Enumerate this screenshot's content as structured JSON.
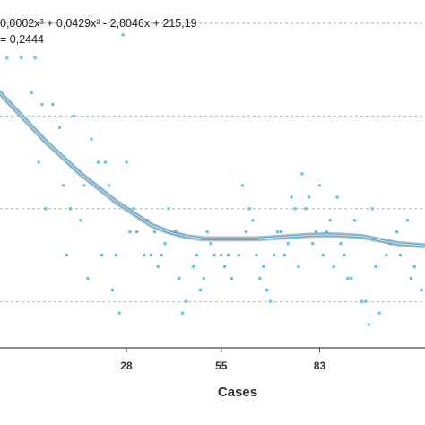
{
  "chart_data": {
    "type": "scatter",
    "title": "",
    "xlabel": "Cases",
    "ylabel": "",
    "xlim": [
      -8,
      113
    ],
    "ylim": [
      60,
      210
    ],
    "x_ticks": [
      28,
      55,
      83
    ],
    "y_gridlines": [
      200,
      160,
      120,
      80
    ],
    "grid": "horizontal dashed",
    "legend": "none",
    "annotations": {
      "equation": "0,0002x³ + 0,0429x² - 2,8046x + 215,19",
      "r_squared": "= 0,2444"
    },
    "trendline": {
      "type": "polynomial (order 3)",
      "x": [
        -8,
        -5,
        0,
        5,
        10,
        15,
        20,
        25,
        30,
        35,
        40,
        45,
        50,
        55,
        60,
        65,
        70,
        75,
        80,
        85,
        90,
        95,
        100,
        105,
        113
      ],
      "y": [
        170,
        165,
        157,
        149,
        142,
        135,
        129,
        123,
        118,
        113,
        110,
        108,
        107,
        107,
        107,
        107,
        107.5,
        108,
        108.5,
        108.8,
        108.5,
        108,
        106.5,
        105,
        104
      ]
    },
    "series": [
      {
        "x": [
          -6,
          -2,
          2,
          4,
          7,
          9,
          10,
          11,
          13,
          16,
          18,
          20,
          22,
          23,
          25,
          27,
          29,
          30,
          31,
          33,
          35,
          36,
          37,
          38,
          40,
          42,
          43,
          45,
          47,
          48,
          50,
          51,
          52,
          53,
          55,
          56,
          58,
          60,
          62,
          63,
          65,
          67,
          68,
          70,
          72,
          74,
          75,
          76,
          78,
          80,
          81,
          83,
          85,
          86,
          88,
          90,
          92,
          95,
          97,
          99,
          102,
          105,
          108,
          110,
          112,
          1,
          3,
          5,
          12,
          15,
          17,
          21,
          24,
          26,
          28,
          34,
          39,
          44,
          49,
          57,
          61,
          64,
          66,
          69,
          71,
          73,
          77,
          79,
          82,
          84,
          87,
          89,
          91,
          93,
          96,
          98,
          100,
          103,
          106,
          109
        ],
        "y": [
          185,
          185,
          185,
          165,
          165,
          155,
          130,
          100,
          160,
          130,
          150,
          140,
          140,
          130,
          100,
          195,
          110,
          120,
          110,
          100,
          100,
          110,
          95,
          100,
          120,
          110,
          90,
          80,
          95,
          100,
          90,
          110,
          105,
          100,
          100,
          95,
          90,
          100,
          110,
          120,
          100,
          95,
          85,
          100,
          110,
          105,
          125,
          120,
          135,
          125,
          105,
          130,
          110,
          115,
          125,
          100,
          90,
          80,
          70,
          95,
          100,
          110,
          115,
          95,
          85,
          170,
          140,
          120,
          120,
          115,
          90,
          100,
          85,
          75,
          140,
          115,
          105,
          75,
          85,
          100,
          130,
          115,
          90,
          80,
          110,
          100,
          95,
          120,
          110,
          100,
          95,
          105,
          90,
          115,
          80,
          120,
          75,
          105,
          100,
          90
        ]
      }
    ],
    "colors": {
      "points": "#5bc8e8",
      "trendline": "#4aa8da",
      "trendline_shadow": "#8a8a8a",
      "gridline": "#aaaaaa",
      "axis": "#444444"
    }
  }
}
